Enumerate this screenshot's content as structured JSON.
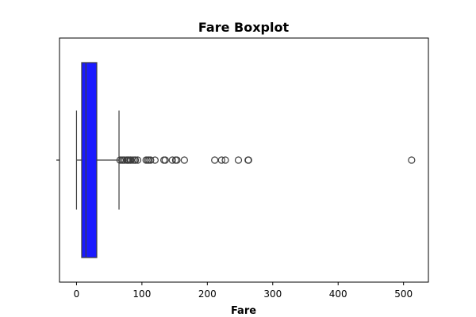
{
  "chart_data": {
    "type": "boxplot",
    "title": "Fare Boxplot",
    "xlabel": "Fare",
    "ylabel": "",
    "orientation": "horizontal",
    "xlim": [
      -26,
      538
    ],
    "xticks": [
      0,
      100,
      200,
      300,
      400,
      500
    ],
    "box": {
      "whisker_low": 0,
      "q1": 7.91,
      "median": 14.45,
      "q3": 31.0,
      "whisker_high": 65.0,
      "color": "#1a1aff",
      "edge_color": "#3d3d3d"
    },
    "outliers": [
      66.6,
      69.55,
      71.28,
      73.5,
      76.73,
      77.96,
      79.2,
      80.0,
      82.17,
      83.16,
      86.5,
      89.1,
      90.0,
      93.5,
      106.43,
      108.9,
      110.88,
      113.28,
      120.0,
      133.65,
      135.63,
      146.52,
      151.55,
      153.46,
      164.87,
      211.34,
      221.78,
      227.53,
      247.52,
      262.38,
      263.0,
      512.33
    ],
    "grid": false
  }
}
